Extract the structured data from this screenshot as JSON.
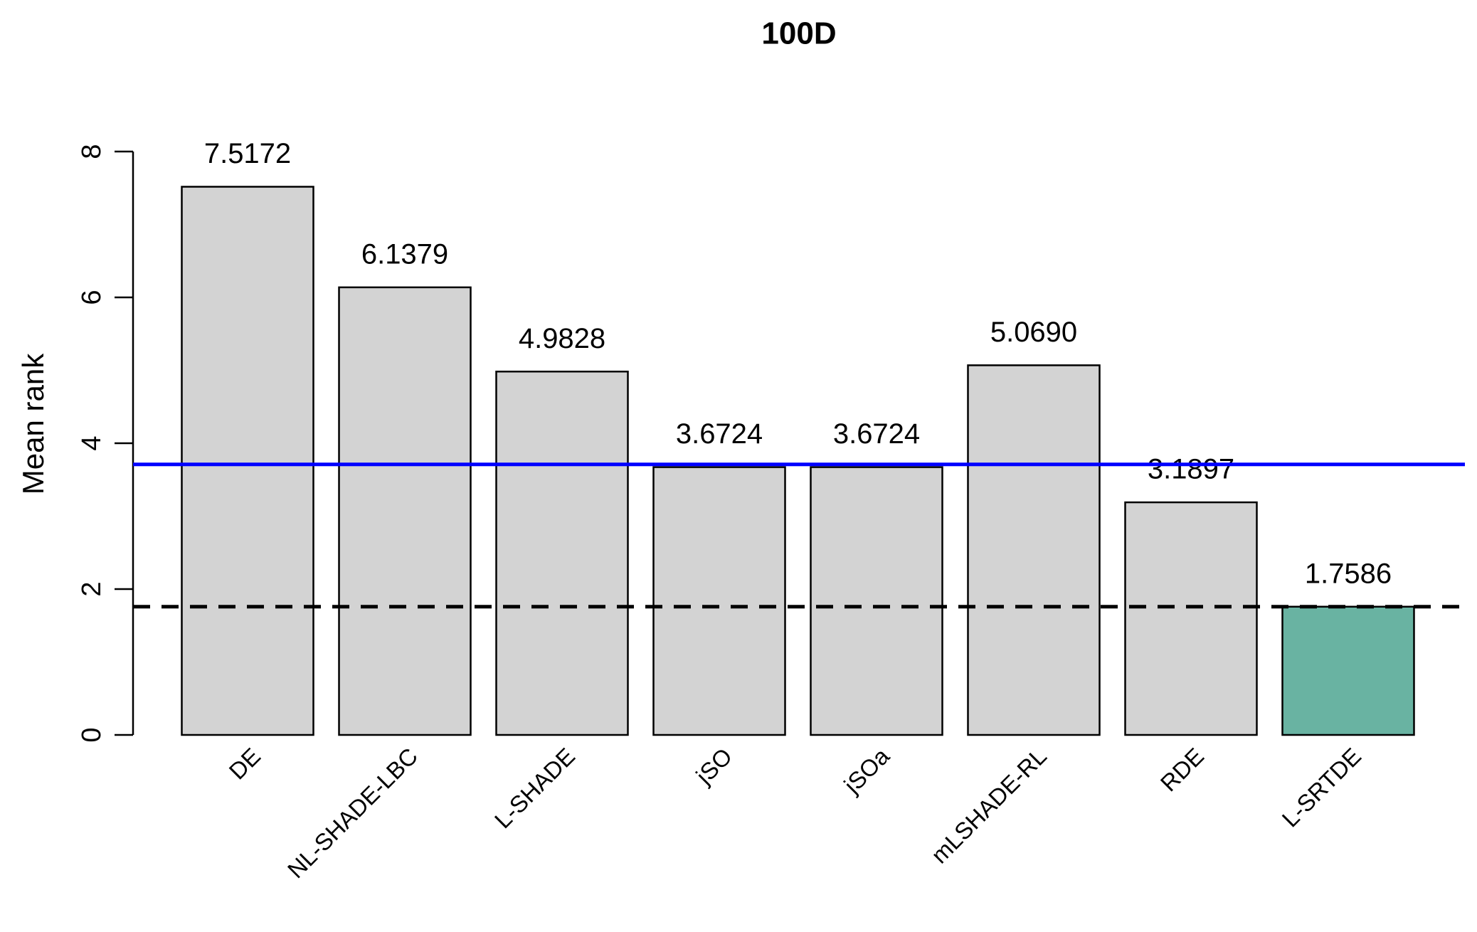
{
  "chart_data": {
    "type": "bar",
    "title": "100D",
    "y_label": "Mean rank",
    "categories": [
      "DE",
      "NL-SHADE-LBC",
      "L-SHADE",
      "jSO",
      "jSOa",
      "mLSHADE-RL",
      "RDE",
      "L-SRTDE"
    ],
    "values": [
      7.5172,
      6.1379,
      4.9828,
      3.6724,
      3.6724,
      5.069,
      3.1897,
      1.7586
    ],
    "value_labels": [
      "7.5172",
      "6.1379",
      "4.9828",
      "3.6724",
      "3.6724",
      "5.0690",
      "3.1897",
      "1.7586"
    ],
    "colors": [
      "#d3d3d3",
      "#d3d3d3",
      "#d3d3d3",
      "#d3d3d3",
      "#d3d3d3",
      "#d3d3d3",
      "#d3d3d3",
      "#69b3a2"
    ],
    "ylim": [
      0,
      8
    ],
    "yticks": [
      0,
      2,
      4,
      6,
      8
    ],
    "reference_lines": [
      {
        "value": 3.71,
        "color": "#0000ff",
        "style": "solid"
      },
      {
        "value": 1.7586,
        "color": "#000000",
        "style": "dashed"
      }
    ]
  }
}
